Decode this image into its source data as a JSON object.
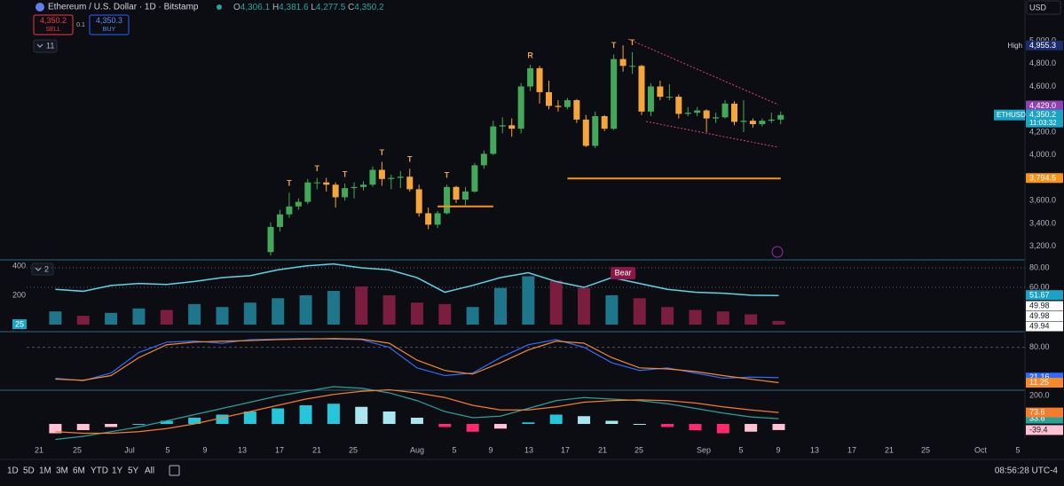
{
  "header": {
    "symbol": "Ethereum / U.S. Dollar · 1D · Bitstamp",
    "ohlc": [
      {
        "label": "O",
        "value": "4,306.1"
      },
      {
        "label": "H",
        "value": "4,381.6"
      },
      {
        "label": "L",
        "value": "4,277.5"
      },
      {
        "label": "C",
        "value": "4,350.2"
      }
    ]
  },
  "trade": {
    "sell_price": "4,350.2",
    "sell": "SELL",
    "spread": "0.1",
    "buy_price": "4,350.3",
    "buy": "BUY"
  },
  "indicators_toggle": "11",
  "pane_toggle": "2",
  "currency": "USD",
  "chart_data": [
    {
      "type": "candlestick",
      "categories": [
        "Jul 16",
        "Jul 17",
        "Jul 18",
        "Jul 19",
        "Jul 20",
        "Jul 21",
        "Jul 22",
        "Jul 23",
        "Jul 24",
        "Jul 25",
        "Jul 26",
        "Jul 27",
        "Jul 28",
        "Jul 29",
        "Jul 30",
        "Jul 31",
        "Aug 1",
        "Aug 2",
        "Aug 3",
        "Aug 4",
        "Aug 5",
        "Aug 6",
        "Aug 7",
        "Aug 8",
        "Aug 9",
        "Aug 10",
        "Aug 11",
        "Aug 12",
        "Aug 13",
        "Aug 14",
        "Aug 15",
        "Aug 16",
        "Aug 17",
        "Aug 18",
        "Aug 19",
        "Aug 20",
        "Aug 21",
        "Aug 22",
        "Aug 23",
        "Aug 24",
        "Aug 25",
        "Aug 26",
        "Aug 27",
        "Aug 28",
        "Aug 29",
        "Aug 30",
        "Aug 31",
        "Sep 1",
        "Sep 2",
        "Sep 3",
        "Sep 4",
        "Sep 5",
        "Sep 6",
        "Sep 7",
        "Sep 8",
        "Sep 9"
      ],
      "open": [
        3150,
        3370,
        3480,
        3550,
        3590,
        3760,
        3760,
        3740,
        3630,
        3710,
        3720,
        3740,
        3870,
        3790,
        3800,
        3810,
        3700,
        3490,
        3390,
        3490,
        3720,
        3610,
        3680,
        3910,
        4010,
        4250,
        4260,
        4230,
        4600,
        4760,
        4550,
        4430,
        4420,
        4480,
        4310,
        4080,
        4340,
        4230,
        4840,
        4780,
        4780,
        4380,
        4600,
        4510,
        4510,
        4360,
        4370,
        4390,
        4320,
        4330,
        4450,
        4290,
        4300,
        4270,
        4300,
        4310
      ],
      "high": [
        3410,
        3520,
        3670,
        3620,
        3790,
        3800,
        3800,
        3760,
        3750,
        3760,
        3770,
        3900,
        3940,
        3830,
        3860,
        3880,
        3740,
        3540,
        3510,
        3740,
        3730,
        3720,
        3930,
        4040,
        4300,
        4330,
        4320,
        4630,
        4790,
        4780,
        4650,
        4480,
        4500,
        4490,
        4350,
        4380,
        4350,
        4880,
        4960,
        4900,
        4790,
        4630,
        4650,
        4620,
        4530,
        4420,
        4420,
        4400,
        4370,
        4480,
        4470,
        4480,
        4320,
        4320,
        4370,
        4380
      ],
      "low": [
        3120,
        3330,
        3450,
        3520,
        3570,
        3700,
        3680,
        3540,
        3600,
        3620,
        3690,
        3720,
        3730,
        3700,
        3710,
        3680,
        3460,
        3350,
        3360,
        3480,
        3580,
        3560,
        3670,
        3880,
        4000,
        4190,
        4160,
        4190,
        4560,
        4450,
        4400,
        4380,
        4400,
        4280,
        4070,
        4060,
        4210,
        4220,
        4730,
        4710,
        4350,
        4340,
        4480,
        4480,
        4320,
        4340,
        4340,
        4200,
        4280,
        4320,
        4260,
        4200,
        4240,
        4250,
        4280,
        4270
      ],
      "close": [
        3370,
        3480,
        3550,
        3590,
        3760,
        3760,
        3740,
        3630,
        3710,
        3720,
        3740,
        3870,
        3790,
        3800,
        3810,
        3700,
        3490,
        3390,
        3490,
        3720,
        3610,
        3680,
        3910,
        4010,
        4250,
        4260,
        4230,
        4600,
        4760,
        4550,
        4430,
        4420,
        4480,
        4310,
        4080,
        4340,
        4230,
        4840,
        4780,
        4780,
        4380,
        4600,
        4510,
        4510,
        4360,
        4370,
        4390,
        4320,
        4330,
        4450,
        4290,
        4300,
        4270,
        4300,
        4310,
        4350
      ],
      "up_color": "#43a85a",
      "down_color": "#f5a53a",
      "ylim": [
        3082,
        5357
      ],
      "yticks": [
        {
          "value": 3200,
          "label": "3,200.0"
        },
        {
          "value": 3400,
          "label": "3,400.0"
        },
        {
          "value": 3600,
          "label": "3,600.0"
        },
        {
          "value": 4000,
          "label": "4,000.0"
        },
        {
          "value": 4200,
          "label": "4,200.0"
        },
        {
          "value": 4600,
          "label": "4,600.0"
        },
        {
          "value": 4800,
          "label": "4,800.0"
        },
        {
          "value": 5000,
          "label": "5,000.0"
        }
      ],
      "price_labels": [
        {
          "name": "High",
          "value": 4955.3,
          "label": "4,955.3",
          "color": "#1c2b6b"
        },
        {
          "value": 4429.0,
          "label": "4,429.0",
          "color": "#8e3fb0"
        },
        {
          "name": "ETHUSD",
          "value": 4350.2,
          "label": "4,350.2",
          "countdown": "11:03:32",
          "color": "#1ba3c6"
        },
        {
          "value": 3794.5,
          "label": "3,794.5",
          "color": "#f7931a"
        }
      ],
      "levels": [
        {
          "value": 3794.5,
          "from": "Aug 17",
          "to": "Sep 9",
          "color": "#f7931a"
        },
        {
          "value": 3550,
          "from": "Aug 3",
          "to": "Aug 9",
          "color": "#f7931a"
        }
      ],
      "annotations": [
        {
          "text": "T",
          "x": "Jul 18"
        },
        {
          "text": "T",
          "x": "Jul 21"
        },
        {
          "text": "T",
          "x": "Jul 24"
        },
        {
          "text": "T",
          "x": "Jul 28"
        },
        {
          "text": "T",
          "x": "Jul 31"
        },
        {
          "text": "T",
          "x": "Aug 4"
        },
        {
          "text": "R",
          "x": "Aug 13"
        },
        {
          "text": "T",
          "x": "Aug 22"
        },
        {
          "text": "T",
          "x": "Aug 24"
        }
      ],
      "annotation_color": "#e8a24a"
    },
    {
      "type": "combo",
      "categories": [
        "Jun 23",
        "Jun 26",
        "Jun 29",
        "Jul 2",
        "Jul 5",
        "Jul 8",
        "Jul 11",
        "Jul 14",
        "Jul 17",
        "Jul 20",
        "Jul 23",
        "Jul 26",
        "Jul 29",
        "Aug 1",
        "Aug 4",
        "Aug 7",
        "Aug 10",
        "Aug 13",
        "Aug 16",
        "Aug 19",
        "Aug 22",
        "Aug 25",
        "Aug 28",
        "Aug 31",
        "Sep 3",
        "Sep 6",
        "Sep 9"
      ],
      "histogram": {
        "values": [
          90,
          60,
          80,
          110,
          100,
          140,
          120,
          150,
          180,
          200,
          230,
          260,
          200,
          150,
          140,
          120,
          250,
          330,
          300,
          250,
          200,
          180,
          120,
          100,
          90,
          70,
          25
        ],
        "up_color": "#1d7689",
        "down_color": "#7a1d3f"
      },
      "line": {
        "values": [
          58,
          56,
          62,
          64,
          63,
          66,
          70,
          72,
          78,
          82,
          84,
          80,
          78,
          70,
          55,
          62,
          70,
          75,
          66,
          60,
          70,
          64,
          58,
          55,
          54,
          52,
          51.67
        ],
        "color": "#5fd3e6",
        "axis": "y2"
      },
      "ylim": [
        0,
        442
      ],
      "yticks": [
        200,
        400
      ],
      "y2lim": [
        15.5,
        88.2
      ],
      "y2ticks": [
        {
          "value": 60,
          "label": "60.00"
        },
        {
          "value": 80,
          "label": "80.00"
        }
      ],
      "readouts": [
        49.98,
        49.98,
        49.94
      ],
      "annotations": [
        {
          "text": "Bear",
          "x": "Aug 23"
        }
      ]
    },
    {
      "type": "line",
      "categories": [
        "Jun 23",
        "Jun 26",
        "Jun 29",
        "Jul 2",
        "Jul 5",
        "Jul 8",
        "Jul 11",
        "Jul 14",
        "Jul 17",
        "Jul 20",
        "Jul 23",
        "Jul 26",
        "Jul 29",
        "Aug 1",
        "Aug 4",
        "Aug 7",
        "Aug 10",
        "Aug 13",
        "Aug 16",
        "Aug 19",
        "Aug 22",
        "Aug 25",
        "Aug 28",
        "Aug 31",
        "Sep 3",
        "Sep 6",
        "Sep 9"
      ],
      "series": [
        {
          "color": "#2f6bff",
          "values": [
            20,
            15,
            30,
            70,
            90,
            92,
            88,
            95,
            96,
            97,
            96,
            95,
            80,
            40,
            25,
            30,
            60,
            85,
            95,
            80,
            50,
            35,
            40,
            30,
            20,
            22,
            21.16
          ]
        },
        {
          "color": "#f58a2b",
          "values": [
            18,
            16,
            25,
            60,
            85,
            90,
            92,
            93,
            95,
            96,
            97,
            96,
            88,
            55,
            35,
            28,
            50,
            75,
            92,
            88,
            60,
            40,
            38,
            33,
            25,
            18,
            11.25
          ]
        }
      ],
      "ylim": [
        -3.4,
        105.2
      ],
      "yticks": [
        {
          "value": 80,
          "label": "80.00"
        }
      ]
    },
    {
      "type": "macd",
      "categories": [
        "Jun 23",
        "Jun 26",
        "Jun 29",
        "Jul 2",
        "Jul 5",
        "Jul 8",
        "Jul 11",
        "Jul 14",
        "Jul 17",
        "Jul 20",
        "Jul 23",
        "Jul 26",
        "Jul 29",
        "Aug 1",
        "Aug 4",
        "Aug 7",
        "Aug 10",
        "Aug 13",
        "Aug 16",
        "Aug 19",
        "Aug 22",
        "Aug 25",
        "Aug 28",
        "Aug 31",
        "Sep 3",
        "Sep 6",
        "Sep 9"
      ],
      "histogram": {
        "values": [
          -60,
          -40,
          -20,
          0,
          20,
          40,
          60,
          80,
          100,
          120,
          130,
          110,
          80,
          40,
          -20,
          -50,
          -30,
          10,
          60,
          50,
          20,
          0,
          -20,
          -40,
          -60,
          -50,
          -39.4
        ],
        "colors": {
          "positive_rising": "#26c6da",
          "positive_falling": "#a9e6ef",
          "negative_falling": "#ff2a6d",
          "negative_rising": "#ffc2d4"
        }
      },
      "series": [
        {
          "color": "#2aa198",
          "values": [
            -100,
            -80,
            -50,
            -20,
            20,
            60,
            100,
            140,
            180,
            210,
            240,
            230,
            200,
            150,
            80,
            40,
            50,
            100,
            150,
            170,
            160,
            150,
            130,
            100,
            70,
            45,
            33.6
          ]
        },
        {
          "color": "#f57c2b",
          "values": [
            -50,
            -60,
            -60,
            -50,
            -30,
            0,
            40,
            80,
            120,
            160,
            190,
            210,
            220,
            200,
            170,
            120,
            90,
            90,
            110,
            140,
            150,
            155,
            150,
            135,
            110,
            90,
            73.6
          ]
        }
      ],
      "ylim": [
        -97,
        217
      ],
      "yticks": [
        {
          "value": 200,
          "label": "200.0"
        }
      ]
    }
  ],
  "x_axis_labels": [
    "21",
    "25",
    "Jul",
    "5",
    "9",
    "13",
    "17",
    "21",
    "25",
    "Aug",
    "5",
    "9",
    "13",
    "17",
    "21",
    "25",
    "Sep",
    "5",
    "9",
    "13",
    "17",
    "21",
    "25",
    "Oct",
    "5"
  ],
  "toolbar": {
    "ranges": [
      "1D",
      "5D",
      "1M",
      "3M",
      "6M",
      "YTD",
      "1Y",
      "5Y",
      "All"
    ],
    "clock": "08:56:28 UTC-4"
  }
}
